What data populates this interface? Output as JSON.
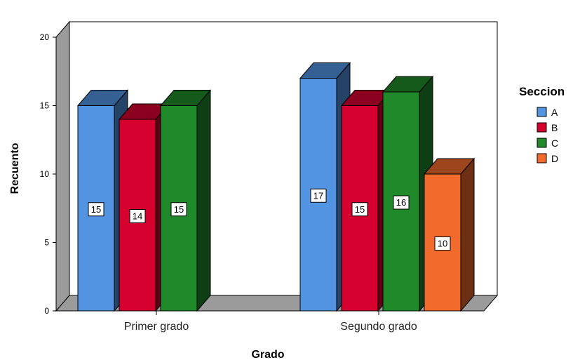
{
  "chart_data": {
    "type": "bar",
    "title": "",
    "xlabel": "Grado",
    "ylabel": "Recuento",
    "categories": [
      "Primer grado",
      "Segundo grado"
    ],
    "ylim": [
      0,
      20
    ],
    "yticks": [
      0,
      5,
      10,
      15,
      20
    ],
    "legend_title": "Seccion",
    "legend_position": "right",
    "series": [
      {
        "name": "A",
        "color": "#5294e2",
        "values": [
          15,
          17
        ]
      },
      {
        "name": "B",
        "color": "#d6002f",
        "values": [
          14,
          15
        ]
      },
      {
        "name": "C",
        "color": "#208a2a",
        "values": [
          15,
          16
        ]
      },
      {
        "name": "D",
        "color": "#f26a2c",
        "values": [
          null,
          10
        ]
      }
    ],
    "grid": false,
    "style": "3d-bar"
  }
}
